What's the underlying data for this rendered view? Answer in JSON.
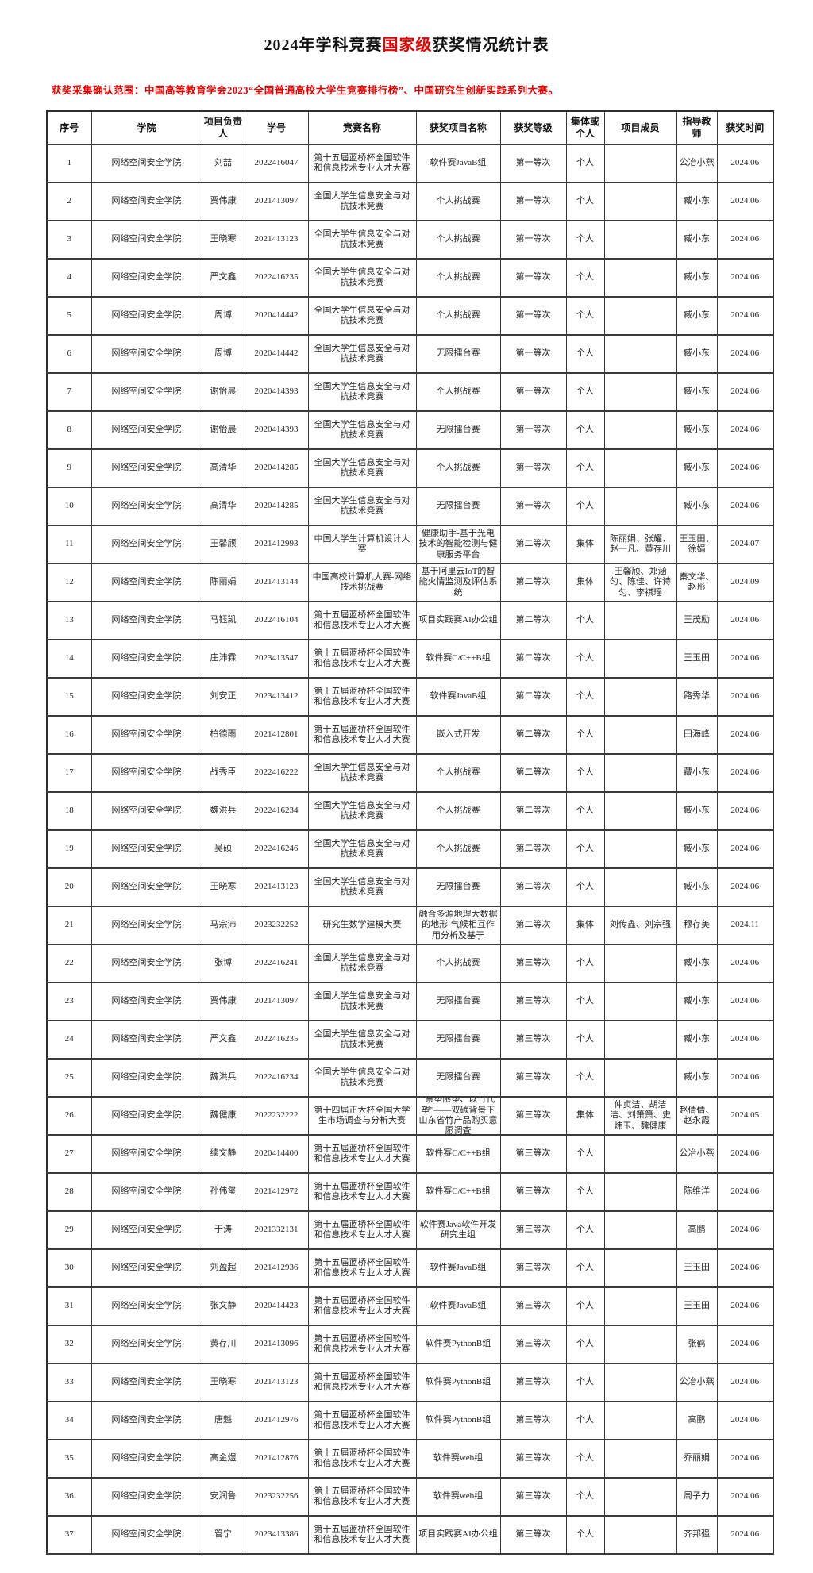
{
  "page": {
    "title_prefix": "2024年学科竞赛",
    "title_highlight": "国家级",
    "title_suffix": "获奖情况统计表",
    "subtitle": "获奖采集确认范围：中国高等教育学会2023“全国普通高校大学生竞赛排行榜”、中国研究生创新实践系列大赛。",
    "accent_color": "#e60000"
  },
  "table": {
    "headers": [
      "序号",
      "学院",
      "项目负责人",
      "学号",
      "竞赛名称",
      "获奖项目名称",
      "获奖等级",
      "集体或个人",
      "项目成员",
      "指导教师",
      "获奖时间"
    ],
    "rows": [
      [
        "1",
        "网络空间安全学院",
        "刘喆",
        "2022416047",
        "第十五届蓝桥杯全国软件和信息技术专业人才大赛",
        "软件赛JavaB组",
        "第一等次",
        "个人",
        "",
        "公冶小燕",
        "2024.06"
      ],
      [
        "2",
        "网络空间安全学院",
        "贾伟康",
        "2021413097",
        "全国大学生信息安全与对抗技术竞赛",
        "个人挑战赛",
        "第一等次",
        "个人",
        "",
        "臧小东",
        "2024.06"
      ],
      [
        "3",
        "网络空间安全学院",
        "王晓寒",
        "2021413123",
        "全国大学生信息安全与对抗技术竞赛",
        "个人挑战赛",
        "第一等次",
        "个人",
        "",
        "臧小东",
        "2024.06"
      ],
      [
        "4",
        "网络空间安全学院",
        "严文鑫",
        "2022416235",
        "全国大学生信息安全与对抗技术竞赛",
        "个人挑战赛",
        "第一等次",
        "个人",
        "",
        "臧小东",
        "2024.06"
      ],
      [
        "5",
        "网络空间安全学院",
        "周博",
        "2020414442",
        "全国大学生信息安全与对抗技术竞赛",
        "个人挑战赛",
        "第一等次",
        "个人",
        "",
        "臧小东",
        "2024.06"
      ],
      [
        "6",
        "网络空间安全学院",
        "周博",
        "2020414442",
        "全国大学生信息安全与对抗技术竞赛",
        "无限擂台赛",
        "第一等次",
        "个人",
        "",
        "臧小东",
        "2024.06"
      ],
      [
        "7",
        "网络空间安全学院",
        "谢怡晨",
        "2020414393",
        "全国大学生信息安全与对抗技术竞赛",
        "个人挑战赛",
        "第一等次",
        "个人",
        "",
        "臧小东",
        "2024.06"
      ],
      [
        "8",
        "网络空间安全学院",
        "谢怡晨",
        "2020414393",
        "全国大学生信息安全与对抗技术竞赛",
        "无限擂台赛",
        "第一等次",
        "个人",
        "",
        "臧小东",
        "2024.06"
      ],
      [
        "9",
        "网络空间安全学院",
        "高清华",
        "2020414285",
        "全国大学生信息安全与对抗技术竞赛",
        "个人挑战赛",
        "第一等次",
        "个人",
        "",
        "臧小东",
        "2024.06"
      ],
      [
        "10",
        "网络空间安全学院",
        "高清华",
        "2020414285",
        "全国大学生信息安全与对抗技术竞赛",
        "无限擂台赛",
        "第一等次",
        "个人",
        "",
        "臧小东",
        "2024.06"
      ],
      [
        "11",
        "网络空间安全学院",
        "王馨颀",
        "2021412993",
        "中国大学生计算机设计大赛",
        "健康助手-基于光电技术的智能检测与健康服务平台",
        "第二等次",
        "集体",
        "陈丽娟、张耀、赵一凡、黄存川",
        "王玉田、徐娟",
        "2024.07"
      ],
      [
        "12",
        "网络空间安全学院",
        "陈丽娟",
        "2021413144",
        "中国高校计算机大赛-网络技术挑战赛",
        "基于阿里云IoT的智能火情监测及评估系统",
        "第二等次",
        "集体",
        "王馨颀、郑涵匀、陈佳、许诗匀、李祺瑶",
        "秦文华、赵彤",
        "2024.09"
      ],
      [
        "13",
        "网络空间安全学院",
        "马钰凯",
        "2022416104",
        "第十五届蓝桥杯全国软件和信息技术专业人才大赛",
        "项目实践赛AI办公组",
        "第二等次",
        "个人",
        "",
        "王茂励",
        "2024.06"
      ],
      [
        "14",
        "网络空间安全学院",
        "庄沛霖",
        "2023413547",
        "第十五届蓝桥杯全国软件和信息技术专业人才大赛",
        "软件赛C/C++B组",
        "第二等次",
        "个人",
        "",
        "王玉田",
        "2024.06"
      ],
      [
        "15",
        "网络空间安全学院",
        "刘安正",
        "2023413412",
        "第十五届蓝桥杯全国软件和信息技术专业人才大赛",
        "软件赛JavaB组",
        "第二等次",
        "个人",
        "",
        "路秀华",
        "2024.06"
      ],
      [
        "16",
        "网络空间安全学院",
        "柏德雨",
        "2021412801",
        "第十五届蓝桥杯全国软件和信息技术专业人才大赛",
        "嵌入式开发",
        "第二等次",
        "个人",
        "",
        "田海峰",
        "2024.06"
      ],
      [
        "17",
        "网络空间安全学院",
        "战秀臣",
        "2022416222",
        "全国大学生信息安全与对抗技术竞赛",
        "个人挑战赛",
        "第二等次",
        "个人",
        "",
        "藏小东",
        "2024.06"
      ],
      [
        "18",
        "网络空间安全学院",
        "魏洪兵",
        "2022416234",
        "全国大学生信息安全与对抗技术竞赛",
        "个人挑战赛",
        "第二等次",
        "个人",
        "",
        "臧小东",
        "2024.06"
      ],
      [
        "19",
        "网络空间安全学院",
        "吴硕",
        "2022416246",
        "全国大学生信息安全与对抗技术竞赛",
        "个人挑战赛",
        "第二等次",
        "个人",
        "",
        "臧小东",
        "2024.06"
      ],
      [
        "20",
        "网络空间安全学院",
        "王晓寒",
        "2021413123",
        "全国大学生信息安全与对抗技术竞赛",
        "无限擂台赛",
        "第二等次",
        "个人",
        "",
        "臧小东",
        "2024.06"
      ],
      [
        "21",
        "网络空间安全学院",
        "马宗沛",
        "2023232252",
        "研究生数学建模大赛",
        "融合多源地理大数据的地形-气候相互作用分析及基于",
        "第二等次",
        "集体",
        "刘传鑫、刘宗强",
        "穆存美",
        "2024.11"
      ],
      [
        "22",
        "网络空间安全学院",
        "张博",
        "2022416241",
        "全国大学生信息安全与对抗技术竞赛",
        "个人挑战赛",
        "第三等次",
        "个人",
        "",
        "臧小东",
        "2024.06"
      ],
      [
        "23",
        "网络空间安全学院",
        "贾伟康",
        "2021413097",
        "全国大学生信息安全与对抗技术竞赛",
        "无限擂台赛",
        "第三等次",
        "个人",
        "",
        "臧小东",
        "2024.06"
      ],
      [
        "24",
        "网络空间安全学院",
        "严文鑫",
        "2022416235",
        "全国大学生信息安全与对抗技术竞赛",
        "无限擂台赛",
        "第三等次",
        "个人",
        "",
        "臧小东",
        "2024.06"
      ],
      [
        "25",
        "网络空间安全学院",
        "魏洪兵",
        "2022416234",
        "全国大学生信息安全与对抗技术竞赛",
        "无限擂台赛",
        "第三等次",
        "个人",
        "",
        "臧小东",
        "2024.06"
      ],
      [
        "26",
        "网络空间安全学院",
        "魏健康",
        "2022232222",
        "第十四届正大杯全国大学生市场调查与分析大赛",
        "“禁塑限塑、以竹代塑”——双碳背景下山东省竹产品购买意愿调查",
        "第三等次",
        "集体",
        "仲贞洁、胡洁洁、刘箫箫、史炜玉、魏健康",
        "赵倩倩、赵永霞",
        "2024.05"
      ],
      [
        "27",
        "网络空间安全学院",
        "续文静",
        "2020414400",
        "第十五届蓝桥杯全国软件和信息技术专业人才大赛",
        "软件赛C/C++B组",
        "第三等次",
        "个人",
        "",
        "公冶小燕",
        "2024.06"
      ],
      [
        "28",
        "网络空间安全学院",
        "孙伟玺",
        "2021412972",
        "第十五届蓝桥杯全国软件和信息技术专业人才大赛",
        "软件赛C/C++B组",
        "第三等次",
        "个人",
        "",
        "陈维洋",
        "2024.06"
      ],
      [
        "29",
        "网络空间安全学院",
        "于涛",
        "2021332131",
        "第十五届蓝桥杯全国软件和信息技术专业人才大赛",
        "软件赛Java软件开发研究生组",
        "第三等次",
        "个人",
        "",
        "高鹏",
        "2024.06"
      ],
      [
        "30",
        "网络空间安全学院",
        "刘盈超",
        "2021412936",
        "第十五届蓝桥杯全国软件和信息技术专业人才大赛",
        "软件赛JavaB组",
        "第三等次",
        "个人",
        "",
        "王玉田",
        "2024.06"
      ],
      [
        "31",
        "网络空间安全学院",
        "张文静",
        "2020414423",
        "第十五届蓝桥杯全国软件和信息技术专业人才大赛",
        "软件赛JavaB组",
        "第三等次",
        "个人",
        "",
        "王玉田",
        "2024.06"
      ],
      [
        "32",
        "网络空间安全学院",
        "黄存川",
        "2021413096",
        "第十五届蓝桥杯全国软件和信息技术专业人才大赛",
        "软件赛PythonB组",
        "第三等次",
        "个人",
        "",
        "张鹤",
        "2024.06"
      ],
      [
        "33",
        "网络空间安全学院",
        "王晓寒",
        "2021413123",
        "第十五届蓝桥杯全国软件和信息技术专业人才大赛",
        "软件赛PythonB组",
        "第三等次",
        "个人",
        "",
        "公冶小燕",
        "2024.06"
      ],
      [
        "34",
        "网络空间安全学院",
        "唐魁",
        "2021412976",
        "第十五届蓝桥杯全国软件和信息技术专业人才大赛",
        "软件赛PythonB组",
        "第三等次",
        "个人",
        "",
        "高鹏",
        "2024.06"
      ],
      [
        "35",
        "网络空间安全学院",
        "高金煜",
        "2021412876",
        "第十五届蓝桥杯全国软件和信息技术专业人才大赛",
        "软件赛web组",
        "第三等次",
        "个人",
        "",
        "乔丽娟",
        "2024.06"
      ],
      [
        "36",
        "网络空间安全学院",
        "安润鲁",
        "2023232256",
        "第十五届蓝桥杯全国软件和信息技术专业人才大赛",
        "软件赛web组",
        "第三等次",
        "个人",
        "",
        "周子力",
        "2024.06"
      ],
      [
        "37",
        "网络空间安全学院",
        "管宁",
        "2023413386",
        "第十五届蓝桥杯全国软件和信息技术专业人才大赛",
        "项目实践赛AI办公组",
        "第三等次",
        "个人",
        "",
        "齐邦强",
        "2024.06"
      ]
    ]
  }
}
